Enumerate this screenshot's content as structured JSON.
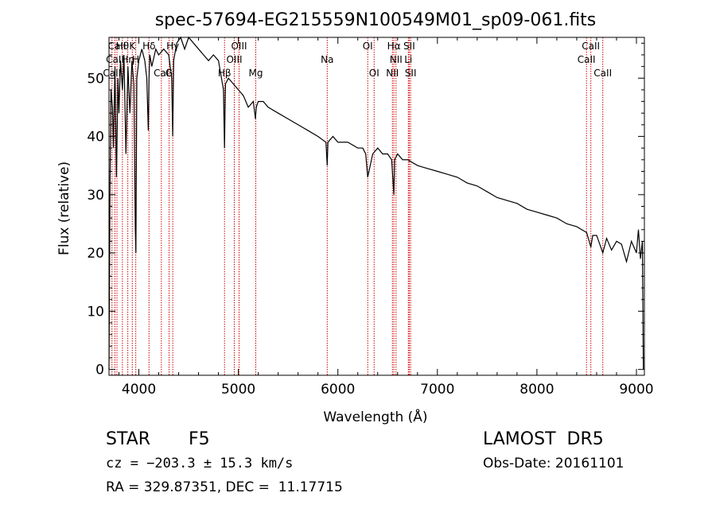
{
  "chart_data": {
    "type": "line",
    "title": "spec-57694-EG215559N100549M01_sp09-061.fits",
    "xlabel": "Wavelength (Å)",
    "ylabel": "Flux (relative)",
    "xlim": [
      3700,
      9080
    ],
    "ylim": [
      -1,
      57
    ],
    "x_ticks": [
      4000,
      5000,
      6000,
      7000,
      8000,
      9000
    ],
    "y_ticks": [
      0,
      10,
      20,
      30,
      40,
      50
    ],
    "line_color": "#000000",
    "marker_color": "#cc0000",
    "grid": false,
    "series": [
      {
        "x": [
          3700,
          3710,
          3720,
          3735,
          3745,
          3760,
          3775,
          3790,
          3800,
          3815,
          3835,
          3850,
          3870,
          3890,
          3910,
          3930,
          3950,
          3965,
          3970,
          3980,
          4000,
          4030,
          4060,
          4080,
          4095,
          4102,
          4110,
          4130,
          4170,
          4200,
          4250,
          4300,
          4330,
          4340,
          4350,
          4380,
          4420,
          4460,
          4500,
          4550,
          4600,
          4650,
          4700,
          4750,
          4800,
          4850,
          4861,
          4870,
          4900,
          4950,
          5000,
          5050,
          5100,
          5150,
          5172,
          5180,
          5200,
          5250,
          5300,
          5400,
          5500,
          5600,
          5700,
          5800,
          5880,
          5893,
          5900,
          5950,
          6000,
          6100,
          6200,
          6250,
          6280,
          6300,
          6350,
          6400,
          6450,
          6500,
          6540,
          6563,
          6570,
          6600,
          6650,
          6700,
          6800,
          6900,
          7000,
          7100,
          7200,
          7300,
          7400,
          7500,
          7600,
          7700,
          7800,
          7900,
          8000,
          8100,
          8200,
          8300,
          8400,
          8500,
          8542,
          8560,
          8600,
          8662,
          8700,
          8750,
          8800,
          8850,
          8900,
          8950,
          9000,
          9020,
          9040,
          9060,
          9070
        ],
        "y": [
          0,
          32,
          48,
          45,
          38,
          52,
          33,
          50,
          44,
          53,
          48,
          54,
          37,
          52,
          44,
          53,
          49,
          24,
          20,
          50,
          53,
          55,
          53,
          50,
          41,
          50,
          54,
          52,
          55,
          54,
          55,
          54,
          50,
          40,
          53,
          56,
          57,
          55,
          57,
          56,
          55,
          54,
          53,
          54,
          53,
          48,
          38,
          49,
          50,
          49,
          48,
          47,
          45,
          46,
          43,
          45,
          46,
          46,
          45,
          44,
          43,
          42,
          41,
          40,
          39,
          35,
          39,
          40,
          39,
          39,
          38,
          38,
          37,
          33,
          37,
          38,
          37,
          37,
          36,
          30,
          36,
          37,
          36,
          36,
          35,
          34.5,
          34,
          33.5,
          33,
          32,
          31.5,
          30.5,
          29.5,
          29,
          28.5,
          27.5,
          27,
          26.5,
          26,
          25,
          24.5,
          23.5,
          21,
          23,
          23,
          20,
          22.5,
          20.5,
          22,
          21.5,
          18.5,
          22,
          20,
          24,
          19,
          22,
          0
        ]
      }
    ],
    "lines": [
      {
        "x": 3730,
        "label": "CaII",
        "row": 2
      },
      {
        "x": 3760,
        "label": "CaII",
        "row": 1
      },
      {
        "x": 3780,
        "label": "CaII",
        "row": 0
      },
      {
        "x": 3835,
        "label": "Hθ",
        "row": 0
      },
      {
        "x": 3889,
        "label": "Hη",
        "row": 1
      },
      {
        "x": 3934,
        "label": "K",
        "row": 0
      },
      {
        "x": 3969,
        "label": "H",
        "row": 1
      },
      {
        "x": 4102,
        "label": "Hδ",
        "row": 0
      },
      {
        "x": 4226,
        "label": "CaI",
        "row": 2
      },
      {
        "x": 4304,
        "label": "G",
        "row": 2
      },
      {
        "x": 4341,
        "label": "Hγ",
        "row": 0
      },
      {
        "x": 4861,
        "label": "Hβ",
        "row": 2
      },
      {
        "x": 4959,
        "label": "OIII",
        "row": 1
      },
      {
        "x": 5007,
        "label": "OIII",
        "row": 0
      },
      {
        "x": 5175,
        "label": "Mg",
        "row": 2
      },
      {
        "x": 5893,
        "label": "Na",
        "row": 1
      },
      {
        "x": 6300,
        "label": "OI",
        "row": 0
      },
      {
        "x": 6364,
        "label": "OI",
        "row": 2
      },
      {
        "x": 6548,
        "label": "NII",
        "row": 2
      },
      {
        "x": 6563,
        "label": "Hα",
        "row": 0
      },
      {
        "x": 6584,
        "label": "NII",
        "row": 1
      },
      {
        "x": 6708,
        "label": "Li",
        "row": 1
      },
      {
        "x": 6717,
        "label": "SII",
        "row": 0
      },
      {
        "x": 6731,
        "label": "SII",
        "row": 2
      },
      {
        "x": 8498,
        "label": "CaII",
        "row": 1
      },
      {
        "x": 8542,
        "label": "CaII",
        "row": 0
      },
      {
        "x": 8662,
        "label": "CaII",
        "row": 2
      }
    ]
  },
  "info": {
    "class": "STAR",
    "subclass": "F5",
    "survey": "LAMOST  DR5",
    "cz": "cz = −203.3 ± 15.3 km/s",
    "obs_date": "Obs-Date: 20161101",
    "coords": "RA = 329.87351, DEC =  11.17715"
  }
}
